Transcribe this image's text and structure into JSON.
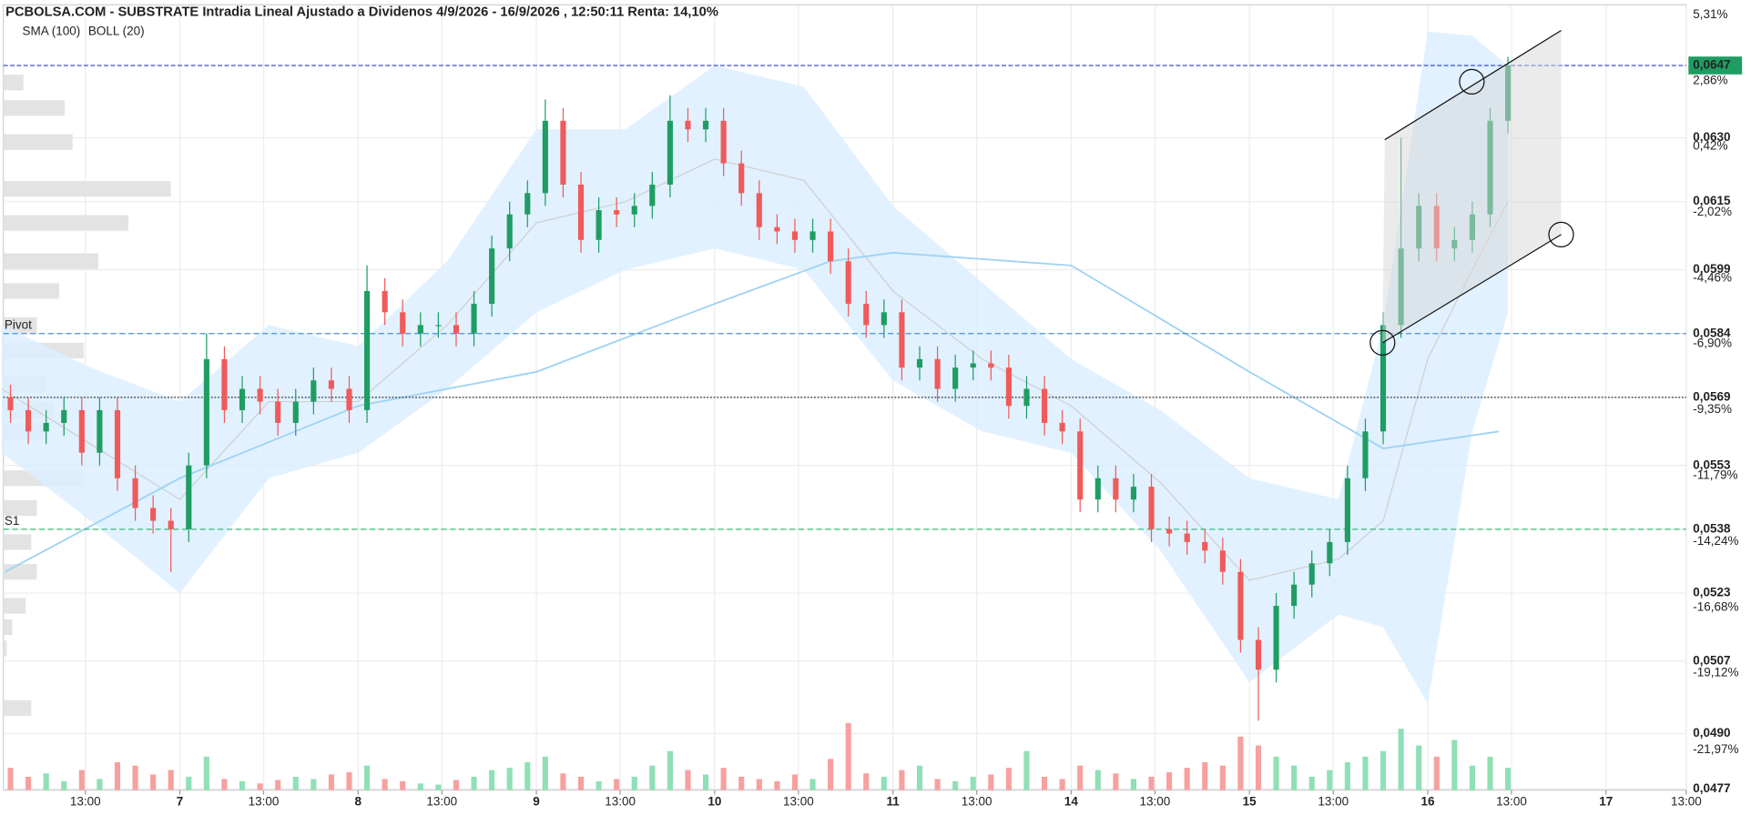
{
  "chart_data": {
    "type": "candlestick",
    "title": "PCBOLSA.COM - SUBSTRATE Intradia Lineal Ajustado a Dividenos 4/9/2026 - 16/9/2026 , 12:50:11 Renta: 14,10%",
    "up_color": "#1f9d63",
    "down_color": "#f05a5a",
    "volume_up_color": "#8fe0b5",
    "volume_down_color": "#f7a0a0",
    "xlim": [
      0.01,
      9.45
    ],
    "xticks": [
      {
        "value": 0.47,
        "label": "13:00"
      },
      {
        "value": 1,
        "label": "7"
      },
      {
        "value": 1.47,
        "label": "13:00"
      },
      {
        "value": 2,
        "label": "8"
      },
      {
        "value": 2.47,
        "label": "13:00"
      },
      {
        "value": 3,
        "label": "9"
      },
      {
        "value": 3.47,
        "label": "13:00"
      },
      {
        "value": 4,
        "label": "10"
      },
      {
        "value": 4.47,
        "label": "13:00"
      },
      {
        "value": 5,
        "label": "11"
      },
      {
        "value": 5.47,
        "label": "13:00"
      },
      {
        "value": 6,
        "label": "14"
      },
      {
        "value": 6.47,
        "label": "13:00"
      },
      {
        "value": 7,
        "label": "15"
      },
      {
        "value": 7.47,
        "label": "13:00"
      },
      {
        "value": 8,
        "label": "16"
      },
      {
        "value": 8.47,
        "label": "13:00"
      },
      {
        "value": 9,
        "label": "17"
      },
      {
        "value": 9.45,
        "label": "13:00"
      }
    ],
    "ylim": [
      0.04767,
      0.0661
    ],
    "yticks": [
      {
        "value": 0.063,
        "label": "0,0630"
      },
      {
        "value": 0.0615,
        "label": "0,0615"
      },
      {
        "value": 0.0599,
        "label": "0,0599"
      },
      {
        "value": 0.0584,
        "label": "0,0584"
      },
      {
        "value": 0.0569,
        "label": "0,0569"
      },
      {
        "value": 0.0553,
        "label": "0,0553"
      },
      {
        "value": 0.0538,
        "label": "0,0538"
      },
      {
        "value": 0.0523,
        "label": "0,0523"
      },
      {
        "value": 0.0507,
        "label": "0,0507"
      },
      {
        "value": 0.049,
        "label": "0,0490"
      },
      {
        "value": 0.0477,
        "label": "0,0477"
      }
    ],
    "y2lim": [
      -23.46,
      5.64
    ],
    "y2ticks": [
      {
        "value": 5.31,
        "label": "5,31%"
      },
      {
        "value": 2.86,
        "label": "2,86%"
      },
      {
        "value": 0.42,
        "label": "0,42%"
      },
      {
        "value": -2.02,
        "label": "-2,02%"
      },
      {
        "value": -4.46,
        "label": "-4,46%"
      },
      {
        "value": -6.9,
        "label": "-6,90%"
      },
      {
        "value": -9.35,
        "label": "-9,35%"
      },
      {
        "value": -11.79,
        "label": "-11,79%"
      },
      {
        "value": -14.24,
        "label": "-14,24%"
      },
      {
        "value": -16.68,
        "label": "-16,68%"
      },
      {
        "value": -19.12,
        "label": "-19,12%"
      },
      {
        "value": -21.97,
        "label": "-21,97%"
      }
    ],
    "grid": true,
    "last": {
      "value": 0.0647,
      "label": "0,0647",
      "color": "#1f9d63",
      "line_color": "#3b4fc4"
    },
    "levels": [
      {
        "label": "Pivot",
        "value": 0.0584,
        "color": "#4a8fe0"
      },
      {
        "label": "S1",
        "value": 0.0538,
        "color": "#3cb97a"
      }
    ],
    "previous_close": {
      "value": 0.0569,
      "color": "#333333"
    },
    "x": [
      0.05,
      0.15,
      0.25,
      0.35,
      0.45,
      0.55,
      0.65,
      0.75,
      0.85,
      0.95,
      1.05,
      1.15,
      1.25,
      1.35,
      1.45,
      1.55,
      1.65,
      1.75,
      1.85,
      1.95,
      2.05,
      2.15,
      2.25,
      2.35,
      2.45,
      2.55,
      2.65,
      2.75,
      2.85,
      2.95,
      3.05,
      3.15,
      3.25,
      3.35,
      3.45,
      3.55,
      3.65,
      3.75,
      3.85,
      3.95,
      4.05,
      4.15,
      4.25,
      4.35,
      4.45,
      4.55,
      4.65,
      4.75,
      4.85,
      4.95,
      5.05,
      5.15,
      5.25,
      5.35,
      5.45,
      5.55,
      5.65,
      5.75,
      5.85,
      5.95,
      6.05,
      6.15,
      6.25,
      6.35,
      6.45,
      6.55,
      6.65,
      6.75,
      6.85,
      6.95,
      7.05,
      7.15,
      7.25,
      7.35,
      7.45,
      7.55,
      7.65,
      7.75,
      7.85,
      7.95,
      8.05,
      8.15,
      8.25,
      8.35,
      8.45
    ],
    "open": [
      0.0569,
      0.0566,
      0.0561,
      0.0563,
      0.0566,
      0.0556,
      0.0566,
      0.055,
      0.0543,
      0.054,
      0.0538,
      0.0553,
      0.0578,
      0.0566,
      0.0571,
      0.0568,
      0.0563,
      0.0568,
      0.0573,
      0.0571,
      0.0566,
      0.0594,
      0.0589,
      0.0584,
      0.0586,
      0.0586,
      0.0584,
      0.0591,
      0.0604,
      0.0612,
      0.0617,
      0.0634,
      0.0619,
      0.0606,
      0.0613,
      0.0612,
      0.0614,
      0.0619,
      0.0634,
      0.0632,
      0.0634,
      0.0624,
      0.0617,
      0.0609,
      0.0608,
      0.0606,
      0.0608,
      0.0601,
      0.0591,
      0.0586,
      0.0589,
      0.0576,
      0.0578,
      0.0571,
      0.0576,
      0.0577,
      0.0576,
      0.0567,
      0.0571,
      0.0563,
      0.0561,
      0.0545,
      0.055,
      0.0545,
      0.0548,
      0.0538,
      0.0537,
      0.0535,
      0.0533,
      0.0528,
      0.0512,
      0.0505,
      0.052,
      0.0525,
      0.053,
      0.0535,
      0.055,
      0.0561,
      0.0586,
      0.0604,
      0.0614,
      0.0604,
      0.0606,
      0.0612,
      0.0634
    ],
    "high": [
      0.0572,
      0.0569,
      0.0566,
      0.0569,
      0.0569,
      0.0569,
      0.0569,
      0.0553,
      0.0546,
      0.0543,
      0.0556,
      0.0584,
      0.0581,
      0.0574,
      0.0574,
      0.0571,
      0.0571,
      0.0576,
      0.0576,
      0.0574,
      0.06,
      0.0597,
      0.0592,
      0.0589,
      0.0589,
      0.0589,
      0.0594,
      0.0607,
      0.0615,
      0.062,
      0.0639,
      0.0637,
      0.0622,
      0.0616,
      0.0616,
      0.0617,
      0.0622,
      0.064,
      0.0637,
      0.0637,
      0.0637,
      0.0627,
      0.062,
      0.0612,
      0.0611,
      0.0611,
      0.0611,
      0.0604,
      0.0594,
      0.0592,
      0.0592,
      0.0581,
      0.0581,
      0.0579,
      0.058,
      0.058,
      0.0579,
      0.0574,
      0.0574,
      0.0566,
      0.0564,
      0.0553,
      0.0553,
      0.0551,
      0.0551,
      0.0541,
      0.054,
      0.0538,
      0.0536,
      0.0531,
      0.0515,
      0.0523,
      0.0528,
      0.0533,
      0.0538,
      0.0553,
      0.0564,
      0.0589,
      0.063,
      0.0617,
      0.0617,
      0.0609,
      0.0615,
      0.0637,
      0.0649
    ],
    "low": [
      0.0563,
      0.0558,
      0.0558,
      0.056,
      0.0553,
      0.0553,
      0.0547,
      0.054,
      0.0537,
      0.0528,
      0.0535,
      0.055,
      0.0563,
      0.0563,
      0.0565,
      0.056,
      0.056,
      0.0565,
      0.0568,
      0.0563,
      0.0563,
      0.0586,
      0.0581,
      0.0581,
      0.0583,
      0.0581,
      0.0581,
      0.0588,
      0.0601,
      0.0609,
      0.0614,
      0.0616,
      0.0603,
      0.0603,
      0.0609,
      0.0609,
      0.0611,
      0.0616,
      0.0629,
      0.0629,
      0.0621,
      0.0614,
      0.0606,
      0.0605,
      0.0603,
      0.0603,
      0.0598,
      0.0588,
      0.0583,
      0.0583,
      0.0573,
      0.0573,
      0.0568,
      0.0568,
      0.0573,
      0.0573,
      0.0564,
      0.0564,
      0.056,
      0.0558,
      0.0542,
      0.0542,
      0.0542,
      0.0542,
      0.0535,
      0.0534,
      0.0532,
      0.053,
      0.0525,
      0.0509,
      0.0493,
      0.0502,
      0.0517,
      0.0522,
      0.0527,
      0.0532,
      0.0547,
      0.0558,
      0.0583,
      0.0601,
      0.0601,
      0.0601,
      0.0603,
      0.0609,
      0.0631
    ],
    "close": [
      0.0566,
      0.0561,
      0.0563,
      0.0566,
      0.0556,
      0.0566,
      0.055,
      0.0543,
      0.054,
      0.0538,
      0.0553,
      0.0578,
      0.0566,
      0.0571,
      0.0568,
      0.0563,
      0.0568,
      0.0573,
      0.0571,
      0.0566,
      0.0594,
      0.0589,
      0.0584,
      0.0586,
      0.0586,
      0.0584,
      0.0591,
      0.0604,
      0.0612,
      0.0617,
      0.0634,
      0.0619,
      0.0606,
      0.0613,
      0.0612,
      0.0614,
      0.0619,
      0.0634,
      0.0632,
      0.0634,
      0.0624,
      0.0617,
      0.0609,
      0.0608,
      0.0606,
      0.0608,
      0.0601,
      0.0591,
      0.0586,
      0.0589,
      0.0576,
      0.0578,
      0.0571,
      0.0576,
      0.0577,
      0.0576,
      0.0567,
      0.0571,
      0.0563,
      0.0561,
      0.0545,
      0.055,
      0.0545,
      0.0548,
      0.0538,
      0.0537,
      0.0535,
      0.0533,
      0.0528,
      0.0512,
      0.0505,
      0.052,
      0.0525,
      0.053,
      0.0535,
      0.055,
      0.0561,
      0.0586,
      0.0604,
      0.0614,
      0.0604,
      0.0606,
      0.0612,
      0.0634,
      0.0647
    ],
    "volume": [
      20,
      12,
      15,
      8,
      18,
      10,
      25,
      22,
      14,
      18,
      12,
      30,
      10,
      8,
      6,
      9,
      12,
      10,
      14,
      16,
      22,
      10,
      8,
      6,
      5,
      9,
      12,
      18,
      20,
      25,
      30,
      15,
      12,
      8,
      10,
      12,
      22,
      35,
      18,
      14,
      20,
      12,
      10,
      8,
      14,
      10,
      28,
      60,
      15,
      12,
      18,
      22,
      10,
      8,
      12,
      14,
      20,
      35,
      12,
      10,
      22,
      18,
      15,
      10,
      12,
      16,
      20,
      25,
      22,
      48,
      40,
      30,
      22,
      12,
      18,
      25,
      30,
      35,
      55,
      40,
      30,
      45,
      22,
      30,
      20
    ],
    "sma": {
      "name": "SMA (100)",
      "color": "#9fd3f3",
      "x": [
        0.02,
        1,
        2,
        3,
        4,
        4.65,
        5,
        6,
        7,
        7.75,
        8.4
      ],
      "values": [
        0.0528,
        0.055,
        0.0567,
        0.0575,
        0.0591,
        0.0601,
        0.0603,
        0.06,
        0.0575,
        0.0557,
        0.0561
      ]
    },
    "boll": {
      "name": "BOLL (20)",
      "color": "#cfcfcf",
      "fill": "#dcefff",
      "x": [
        0,
        0.5,
        1,
        1.5,
        2,
        2.5,
        3,
        3.5,
        4,
        4.5,
        5,
        5.5,
        6,
        6.5,
        7,
        7.5,
        7.75,
        8,
        8.25,
        8.45
      ],
      "upper": [
        0.0586,
        0.0576,
        0.0568,
        0.0586,
        0.0581,
        0.0601,
        0.0632,
        0.0632,
        0.0647,
        0.0642,
        0.0614,
        0.0596,
        0.0578,
        0.0566,
        0.055,
        0.0545,
        0.0586,
        0.0655,
        0.0654,
        0.0647
      ],
      "middle": [
        0.0571,
        0.0558,
        0.0545,
        0.0568,
        0.0568,
        0.0586,
        0.061,
        0.0615,
        0.0625,
        0.062,
        0.0594,
        0.0578,
        0.0567,
        0.0549,
        0.0526,
        0.0531,
        0.054,
        0.0578,
        0.0599,
        0.0615
      ],
      "lower": [
        0.0556,
        0.054,
        0.0523,
        0.055,
        0.0556,
        0.0571,
        0.0589,
        0.0599,
        0.0604,
        0.0599,
        0.0573,
        0.0561,
        0.0556,
        0.0533,
        0.0502,
        0.0518,
        0.0515,
        0.0497,
        0.0561,
        0.0589
      ]
    },
    "volume_profile": {
      "color": "#e3e3e3",
      "levels": [
        0.0643,
        0.0637,
        0.0629,
        0.0618,
        0.061,
        0.0601,
        0.0594,
        0.0586,
        0.058,
        0.0572,
        0.0566,
        0.0561,
        0.055,
        0.0543,
        0.0535,
        0.0528,
        0.052,
        0.0515,
        0.051,
        0.0496
      ],
      "values": [
        18,
        55,
        62,
        150,
        112,
        85,
        50,
        30,
        72,
        38,
        45,
        40,
        72,
        30,
        25,
        30,
        20,
        8,
        3,
        25
      ]
    }
  }
}
